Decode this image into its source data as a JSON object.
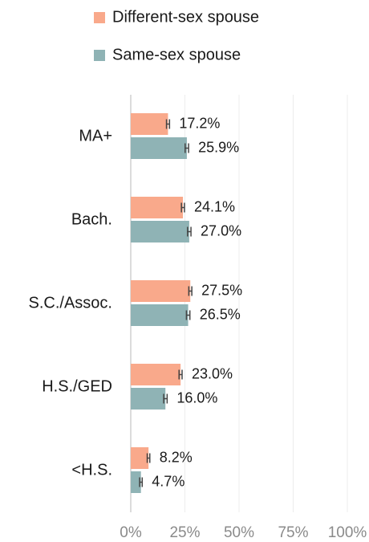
{
  "chart_data": {
    "type": "bar",
    "orientation": "horizontal",
    "categories": [
      "MA+",
      "Bach.",
      "S.C./Assoc.",
      "H.S./GED",
      "<H.S."
    ],
    "series": [
      {
        "name": "Different-sex spouse",
        "color": "#f9a98b",
        "values": [
          17.2,
          24.1,
          27.5,
          23.0,
          8.2
        ],
        "value_labels": [
          "17.2%",
          "24.1%",
          "27.5%",
          "23.0%",
          "8.2%"
        ],
        "errors": [
          0.7,
          0.7,
          0.7,
          0.7,
          0.6
        ]
      },
      {
        "name": "Same-sex spouse",
        "color": "#8fb3b5",
        "values": [
          25.9,
          27.0,
          26.5,
          16.0,
          4.7
        ],
        "value_labels": [
          "25.9%",
          "27.0%",
          "26.5%",
          "16.0%",
          "4.7%"
        ],
        "errors": [
          0.8,
          0.8,
          0.8,
          0.8,
          0.6
        ]
      }
    ],
    "xlim": [
      0,
      100
    ],
    "xticks": [
      {
        "value": 0,
        "label": "0%"
      },
      {
        "value": 25,
        "label": "25%"
      },
      {
        "value": 50,
        "label": "50%"
      },
      {
        "value": 75,
        "label": "75%"
      },
      {
        "value": 100,
        "label": "100%"
      }
    ],
    "grid": true
  }
}
